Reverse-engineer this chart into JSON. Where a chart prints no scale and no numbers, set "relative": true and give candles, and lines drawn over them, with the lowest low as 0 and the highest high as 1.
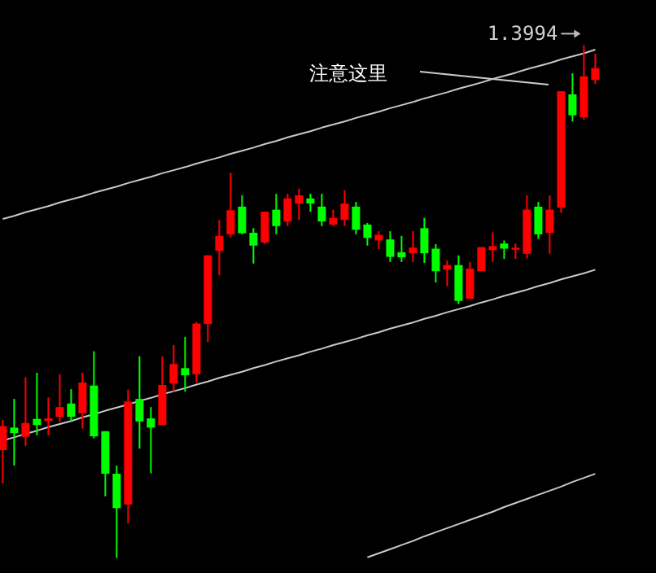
{
  "chart_data": {
    "type": "candlestick",
    "relative": true,
    "categories": [
      null,
      null,
      null,
      null,
      null,
      null,
      null,
      null,
      null,
      null,
      null,
      null,
      null,
      null,
      null,
      null,
      null,
      null,
      null,
      null,
      null,
      null,
      null,
      null,
      null,
      null,
      null,
      null,
      null,
      null,
      null,
      null,
      null,
      null,
      null,
      null,
      null,
      null,
      null,
      null,
      null,
      null,
      null,
      null,
      null,
      null,
      null,
      null,
      null,
      null,
      null,
      null,
      null
    ],
    "ohlc": [
      [
        0.21,
        0.269,
        0.145,
        0.257
      ],
      [
        0.254,
        0.31,
        0.18,
        0.243
      ],
      [
        0.236,
        0.352,
        0.218,
        0.263
      ],
      [
        0.271,
        0.361,
        0.239,
        0.259
      ],
      [
        0.267,
        0.313,
        0.239,
        0.272
      ],
      [
        0.275,
        0.358,
        0.265,
        0.294
      ],
      [
        0.301,
        0.329,
        0.265,
        0.275
      ],
      [
        0.282,
        0.361,
        0.252,
        0.342
      ],
      [
        0.336,
        0.403,
        0.233,
        0.237
      ],
      [
        0.247,
        0.247,
        0.12,
        0.164
      ],
      [
        0.164,
        0.18,
        0,
        0.097
      ],
      [
        0.104,
        0.328,
        0.067,
        0.305
      ],
      [
        0.31,
        0.393,
        0.213,
        0.266
      ],
      [
        0.272,
        0.294,
        0.165,
        0.254
      ],
      [
        0.259,
        0.393,
        0.259,
        0.337
      ],
      [
        0.34,
        0.415,
        0.324,
        0.378
      ],
      [
        0.37,
        0.431,
        0.324,
        0.356
      ],
      [
        0.358,
        0.46,
        0.342,
        0.457
      ],
      [
        0.456,
        0.59,
        0.421,
        0.59
      ],
      [
        0.599,
        0.659,
        0.551,
        0.628
      ],
      [
        0.631,
        0.751,
        0.625,
        0.678
      ],
      [
        0.685,
        0.707,
        0.631,
        0.633
      ],
      [
        0.634,
        0.643,
        0.574,
        0.609
      ],
      [
        0.615,
        0.675,
        0.612,
        0.675
      ],
      [
        0.679,
        0.71,
        0.631,
        0.647
      ],
      [
        0.656,
        0.71,
        0.647,
        0.701
      ],
      [
        0.691,
        0.72,
        0.659,
        0.707
      ],
      [
        0.701,
        0.71,
        0.675,
        0.691
      ],
      [
        0.685,
        0.71,
        0.647,
        0.656
      ],
      [
        0.65,
        0.679,
        0.647,
        0.663
      ],
      [
        0.659,
        0.717,
        0.647,
        0.691
      ],
      [
        0.685,
        0.694,
        0.631,
        0.64
      ],
      [
        0.65,
        0.653,
        0.609,
        0.624
      ],
      [
        0.619,
        0.637,
        0.602,
        0.63
      ],
      [
        0.621,
        0.637,
        0.577,
        0.587
      ],
      [
        0.596,
        0.628,
        0.577,
        0.586
      ],
      [
        0.594,
        0.637,
        0.577,
        0.605
      ],
      [
        0.643,
        0.663,
        0.575,
        0.594
      ],
      [
        0.603,
        0.612,
        0.537,
        0.559
      ],
      [
        0.562,
        0.58,
        0.53,
        0.571
      ],
      [
        0.571,
        0.59,
        0.495,
        0.501
      ],
      [
        0.505,
        0.577,
        0.505,
        0.564
      ],
      [
        0.559,
        0.606,
        0.559,
        0.606
      ],
      [
        0.6,
        0.635,
        0.577,
        0.608
      ],
      [
        0.613,
        0.619,
        0.583,
        0.603
      ],
      [
        0.601,
        0.613,
        0.583,
        0.605
      ],
      [
        0.593,
        0.707,
        0.584,
        0.679
      ],
      [
        0.685,
        0.694,
        0.622,
        0.631
      ],
      [
        0.634,
        0.707,
        0.593,
        0.679
      ],
      [
        0.683,
        0.91,
        0.673,
        0.91
      ],
      [
        0.904,
        0.945,
        0.851,
        0.863
      ],
      [
        0.859,
        1,
        0.854,
        0.939
      ],
      [
        0.932,
        0.983,
        0.924,
        0.955
      ]
    ],
    "colors": [
      "#ff0000",
      "#00ff00",
      "#ff0000",
      "#00ff00",
      "#ff0000",
      "#ff0000",
      "#00ff00",
      "#ff0000",
      "#00ff00",
      "#00ff00",
      "#00ff00",
      "#ff0000",
      "#00ff00",
      "#00ff00",
      "#ff0000",
      "#ff0000",
      "#00ff00",
      "#ff0000",
      "#ff0000",
      "#ff0000",
      "#ff0000",
      "#00ff00",
      "#00ff00",
      "#ff0000",
      "#00ff00",
      "#ff0000",
      "#ff0000",
      "#00ff00",
      "#00ff00",
      "#ff0000",
      "#ff0000",
      "#00ff00",
      "#00ff00",
      "#ff0000",
      "#00ff00",
      "#00ff00",
      "#ff0000",
      "#00ff00",
      "#00ff00",
      "#ff0000",
      "#00ff00",
      "#ff0000",
      "#ff0000",
      "#ff0000",
      "#00ff00",
      "#ff0000",
      "#ff0000",
      "#00ff00",
      "#ff0000",
      "#ff0000",
      "#00ff00",
      "#ff0000",
      "#ff0000"
    ],
    "series": [
      {
        "type": "line",
        "color": "#c8c8c8",
        "values": [
          0.661,
          0.667,
          0.674,
          0.68,
          0.686,
          0.693,
          0.699,
          0.705,
          0.712,
          0.718,
          0.724,
          0.731,
          0.737,
          0.743,
          0.75,
          0.756,
          0.762,
          0.769,
          0.775,
          0.781,
          0.788,
          0.794,
          0.8,
          0.807,
          0.813,
          0.82,
          0.826,
          0.832,
          0.839,
          0.845,
          0.851,
          0.858,
          0.864,
          0.87,
          0.877,
          0.883,
          0.889,
          0.896,
          0.902,
          0.908,
          0.915,
          0.921,
          0.927,
          0.934,
          0.94,
          0.946,
          0.953,
          0.959,
          0.965,
          0.972,
          0.978,
          0.984,
          0.991
        ]
      },
      {
        "type": "line",
        "color": "#c8c8c8",
        "values": [
          0.229,
          0.235,
          0.242,
          0.248,
          0.255,
          0.261,
          0.267,
          0.274,
          0.28,
          0.287,
          0.293,
          0.299,
          0.306,
          0.312,
          0.319,
          0.325,
          0.331,
          0.338,
          0.344,
          0.351,
          0.357,
          0.363,
          0.37,
          0.376,
          0.383,
          0.389,
          0.395,
          0.402,
          0.408,
          0.415,
          0.421,
          0.427,
          0.434,
          0.44,
          0.447,
          0.453,
          0.459,
          0.466,
          0.472,
          0.479,
          0.485,
          0.491,
          0.498,
          0.504,
          0.511,
          0.517,
          0.523,
          0.53,
          0.536,
          0.543,
          0.549,
          0.555,
          0.562
        ]
      },
      {
        "type": "line",
        "color": "#c8c8c8",
        "values": [
          null,
          null,
          null,
          null,
          null,
          null,
          null,
          null,
          null,
          null,
          null,
          null,
          null,
          null,
          null,
          null,
          null,
          null,
          null,
          null,
          null,
          null,
          null,
          null,
          null,
          null,
          null,
          null,
          null,
          null,
          null,
          null,
          0.001,
          0.009,
          0.017,
          0.025,
          0.033,
          0.042,
          0.05,
          0.058,
          0.066,
          0.074,
          0.082,
          0.09,
          0.099,
          0.107,
          0.115,
          0.123,
          0.131,
          0.139,
          0.148,
          0.156,
          0.164
        ]
      }
    ],
    "annotations": [
      "1.3994",
      "注意这里"
    ]
  }
}
